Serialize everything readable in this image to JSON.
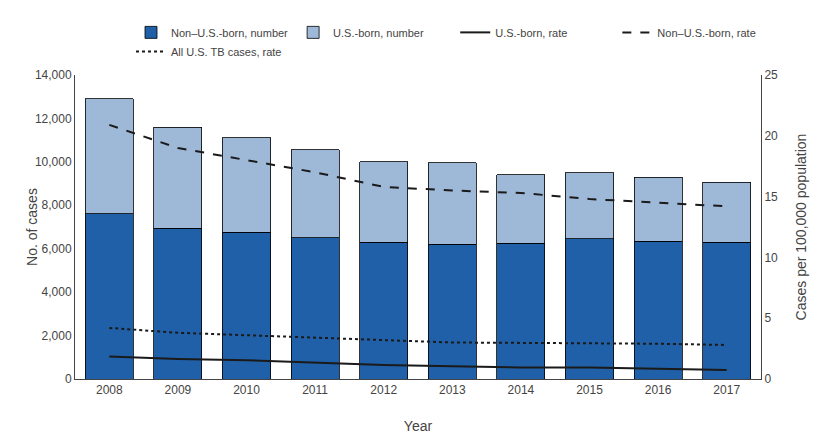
{
  "chart_data": {
    "type": "bar",
    "stacked": true,
    "xlabel": "Year",
    "ylabel": "No. of cases",
    "y2label": "Cases per 100,000 population",
    "categories": [
      2008,
      2009,
      2010,
      2011,
      2012,
      2013,
      2014,
      2015,
      2016,
      2017
    ],
    "series": [
      {
        "name": "Non–U.S.-born, number",
        "type": "bar",
        "color": "#2060a8",
        "values": [
          7600,
          6950,
          6750,
          6500,
          6300,
          6200,
          6250,
          6450,
          6350,
          6300
        ]
      },
      {
        "name": "U.S.-born, number",
        "type": "bar",
        "color": "#9eb8d8",
        "values": [
          5300,
          4650,
          4350,
          4050,
          3700,
          3750,
          3150,
          3050,
          2950,
          2750
        ]
      },
      {
        "name": "U.S.-born, rate",
        "type": "line",
        "axis": "y2",
        "color": "#1a1a1a",
        "line_style": "solid",
        "values": [
          1.85,
          1.65,
          1.55,
          1.35,
          1.15,
          1.05,
          0.95,
          0.95,
          0.85,
          0.75
        ]
      },
      {
        "name": "Non–U.S.-born, rate",
        "type": "line",
        "axis": "y2",
        "color": "#1a1a1a",
        "line_style": "dashed",
        "values": [
          20.9,
          19.0,
          18.0,
          17.0,
          15.8,
          15.5,
          15.3,
          14.8,
          14.5,
          14.2
        ]
      },
      {
        "name": "All U.S. TB cases, rate",
        "type": "line",
        "axis": "y2",
        "color": "#1a1a1a",
        "line_style": "dotted",
        "values": [
          4.2,
          3.8,
          3.6,
          3.4,
          3.15,
          3.0,
          2.97,
          2.95,
          2.9,
          2.8
        ]
      }
    ],
    "ylim": [
      0,
      14000
    ],
    "yticks": [
      0,
      {
        "value": 2000,
        "label": "2,000"
      },
      {
        "value": 4000,
        "label": "4,000"
      },
      {
        "value": 6000,
        "label": "6,000"
      },
      {
        "value": 8000,
        "label": "8,000"
      },
      {
        "value": 10000,
        "label": "10,000"
      },
      {
        "value": 12000,
        "label": "12,000"
      },
      {
        "value": 14000,
        "label": "14,000"
      }
    ],
    "y2lim": [
      0,
      25
    ],
    "y2ticks": [
      0,
      5,
      10,
      15,
      20,
      25
    ],
    "grid": false,
    "legend": "upper right"
  }
}
